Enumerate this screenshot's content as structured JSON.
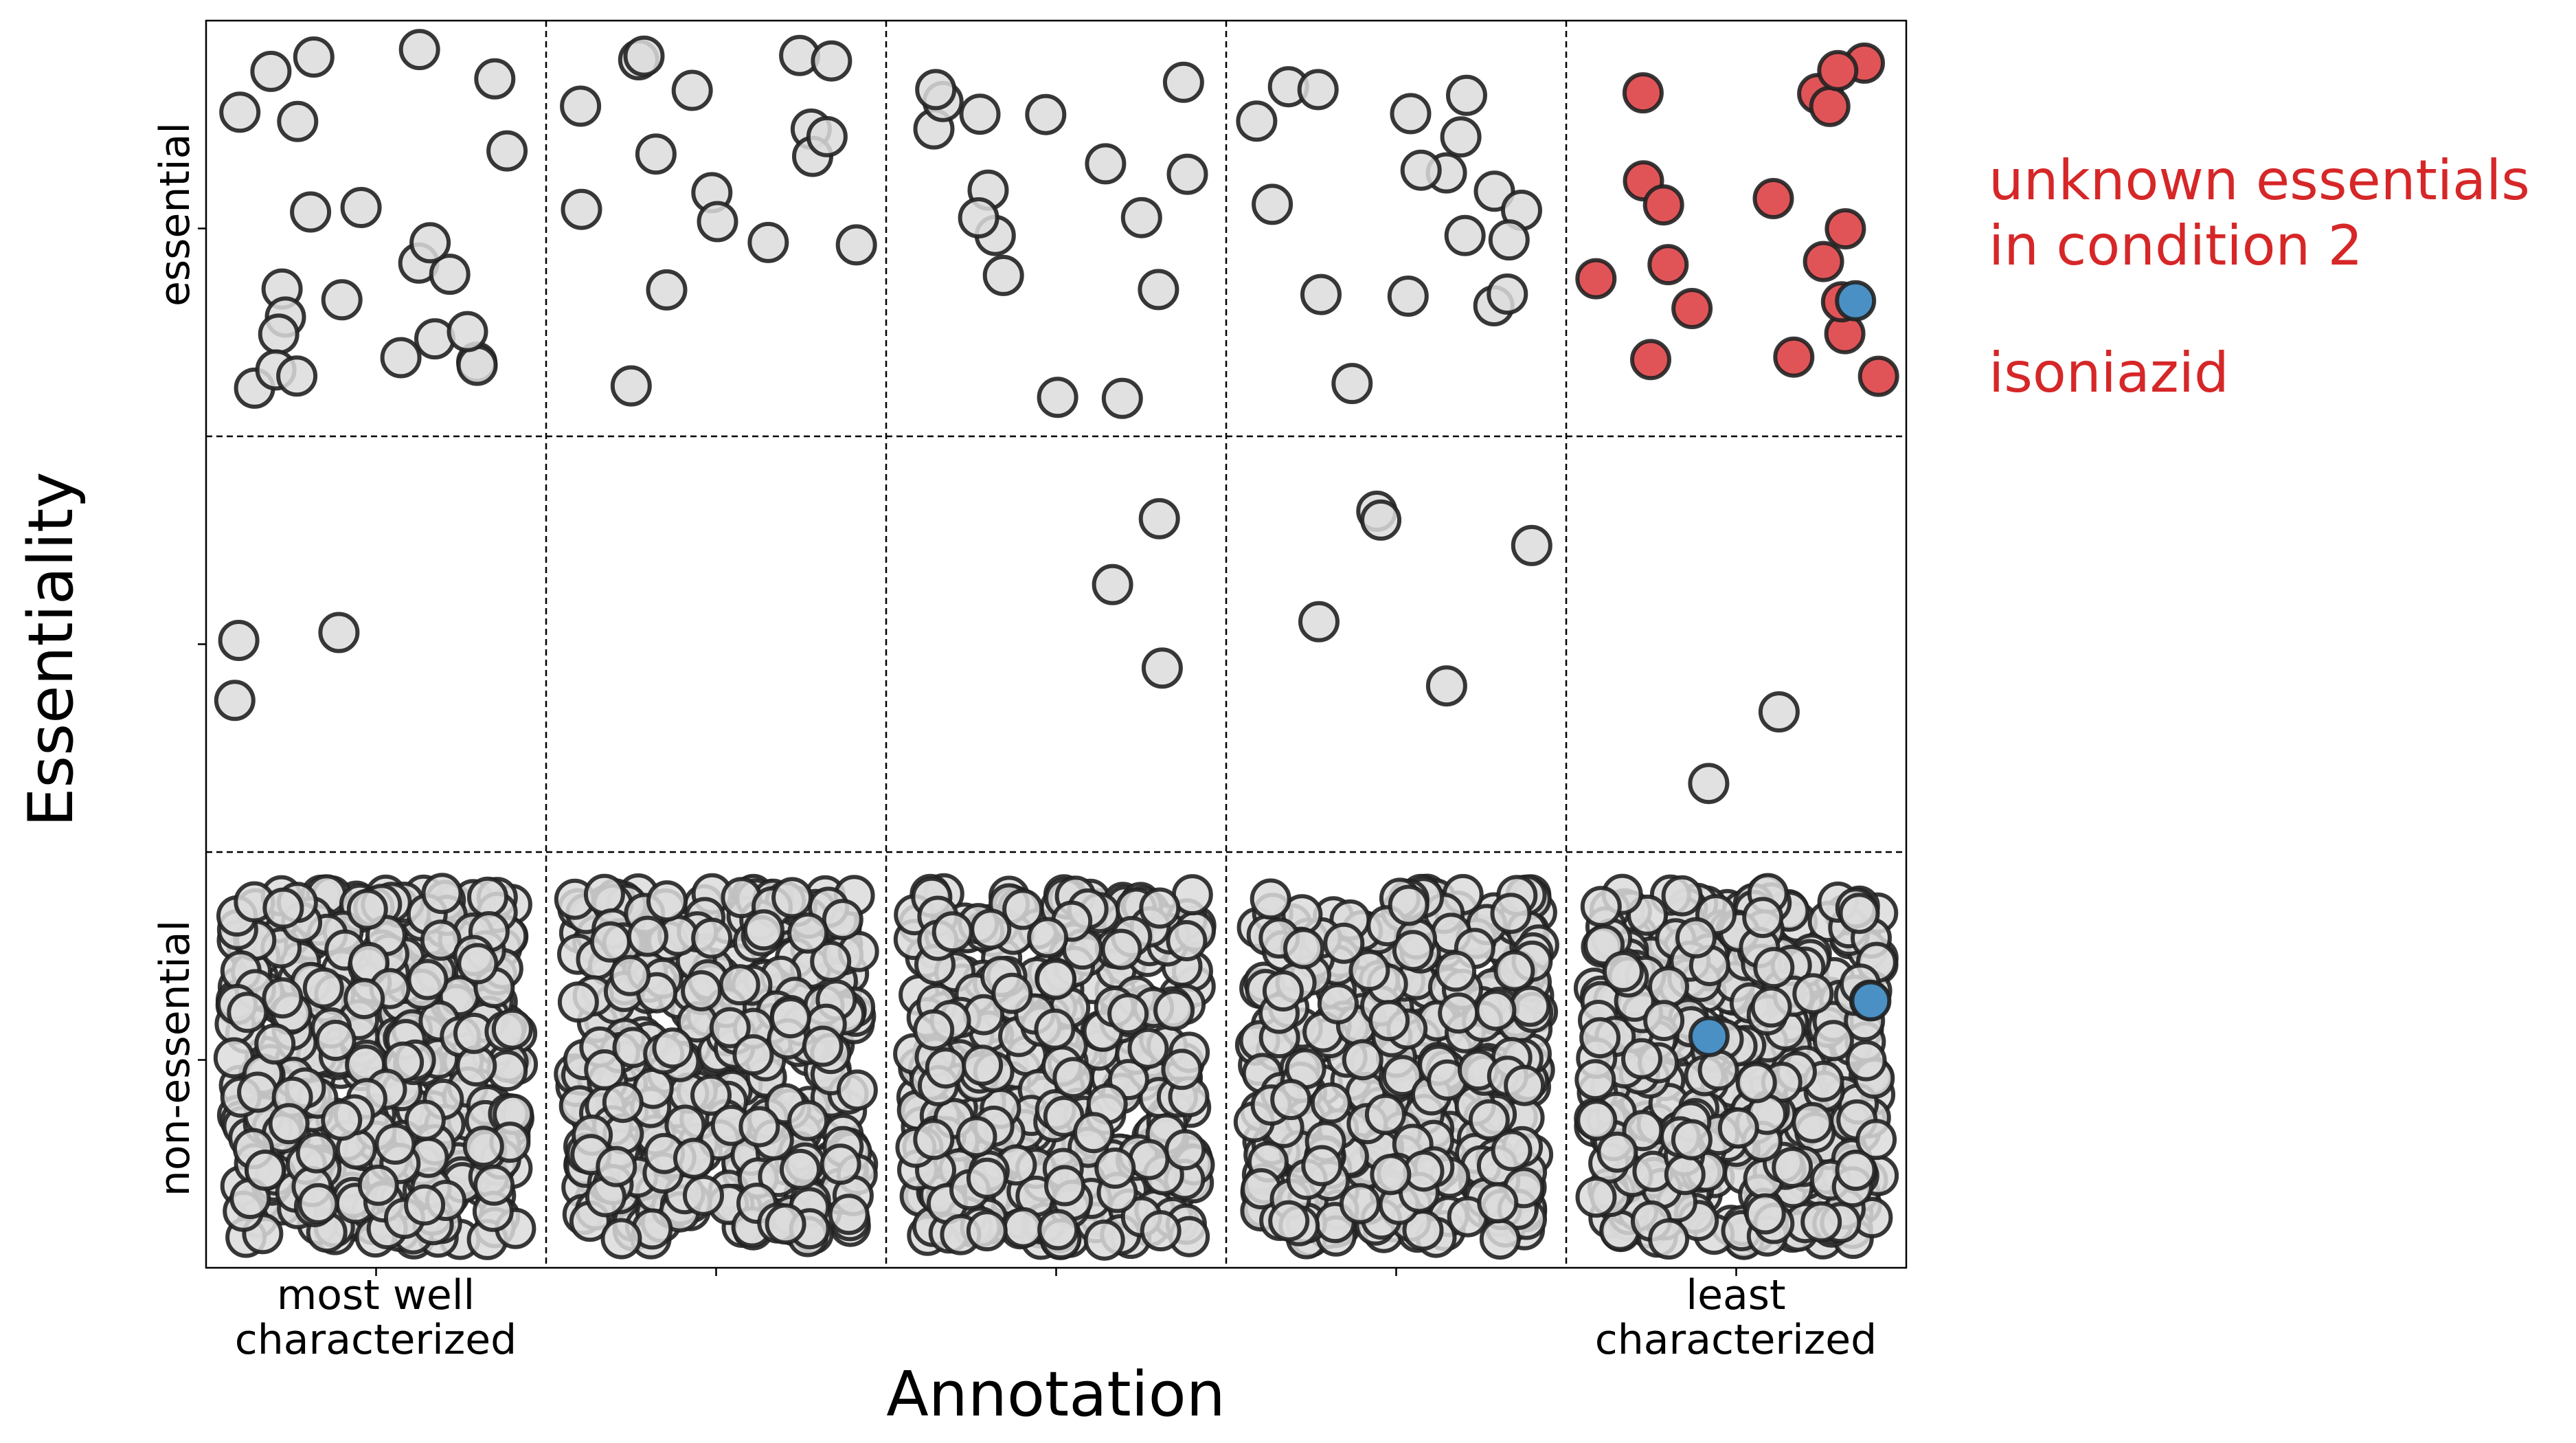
{
  "chart_data": {
    "type": "scatter",
    "xlabel": "Annotation",
    "ylabel": "Essentiality",
    "x_categories": [
      "1",
      "2",
      "3",
      "4",
      "5"
    ],
    "x_tick_labels": [
      {
        "category": "1",
        "lines": [
          "most well",
          "characterized"
        ]
      },
      {
        "category": "2",
        "lines": []
      },
      {
        "category": "3",
        "lines": []
      },
      {
        "category": "4",
        "lines": []
      },
      {
        "category": "5",
        "lines": [
          "least",
          "characterized"
        ]
      }
    ],
    "y_categories": [
      "essential",
      "",
      "non-essential"
    ],
    "y_tick_labels": [
      "essential",
      "",
      "non-essential"
    ],
    "grid": "dashed lines between categories",
    "colors": {
      "default": "#dcdcdc",
      "highlight_red": "#e05458",
      "highlight_blue": "#4a90c4",
      "edge": "#222222",
      "annotation": "#d62728"
    },
    "annotations": [
      "unknown essentials",
      "in condition 2",
      "isoniazid"
    ],
    "points_note": "positions inside each cell are random jitter; counts per cell given below",
    "cell_counts": [
      {
        "x": "1",
        "y": "essential",
        "grey": 24
      },
      {
        "x": "2",
        "y": "essential",
        "grey": 17
      },
      {
        "x": "3",
        "y": "essential",
        "grey": 16
      },
      {
        "x": "4",
        "y": "essential",
        "grey": 18
      },
      {
        "x": "5",
        "y": "essential",
        "red": 19,
        "blue": 1
      },
      {
        "x": "1",
        "y": "",
        "grey": 3
      },
      {
        "x": "2",
        "y": "",
        "grey": 0
      },
      {
        "x": "3",
        "y": "",
        "grey": 3
      },
      {
        "x": "4",
        "y": "",
        "grey": 5
      },
      {
        "x": "5",
        "y": "",
        "grey": 2
      },
      {
        "x": "1",
        "y": "non-essential",
        "grey": 420
      },
      {
        "x": "2",
        "y": "non-essential",
        "grey": 400
      },
      {
        "x": "3",
        "y": "non-essential",
        "grey": 390
      },
      {
        "x": "4",
        "y": "non-essential",
        "grey": 380
      },
      {
        "x": "5",
        "y": "non-essential",
        "grey": 420,
        "blue": 2
      }
    ]
  }
}
